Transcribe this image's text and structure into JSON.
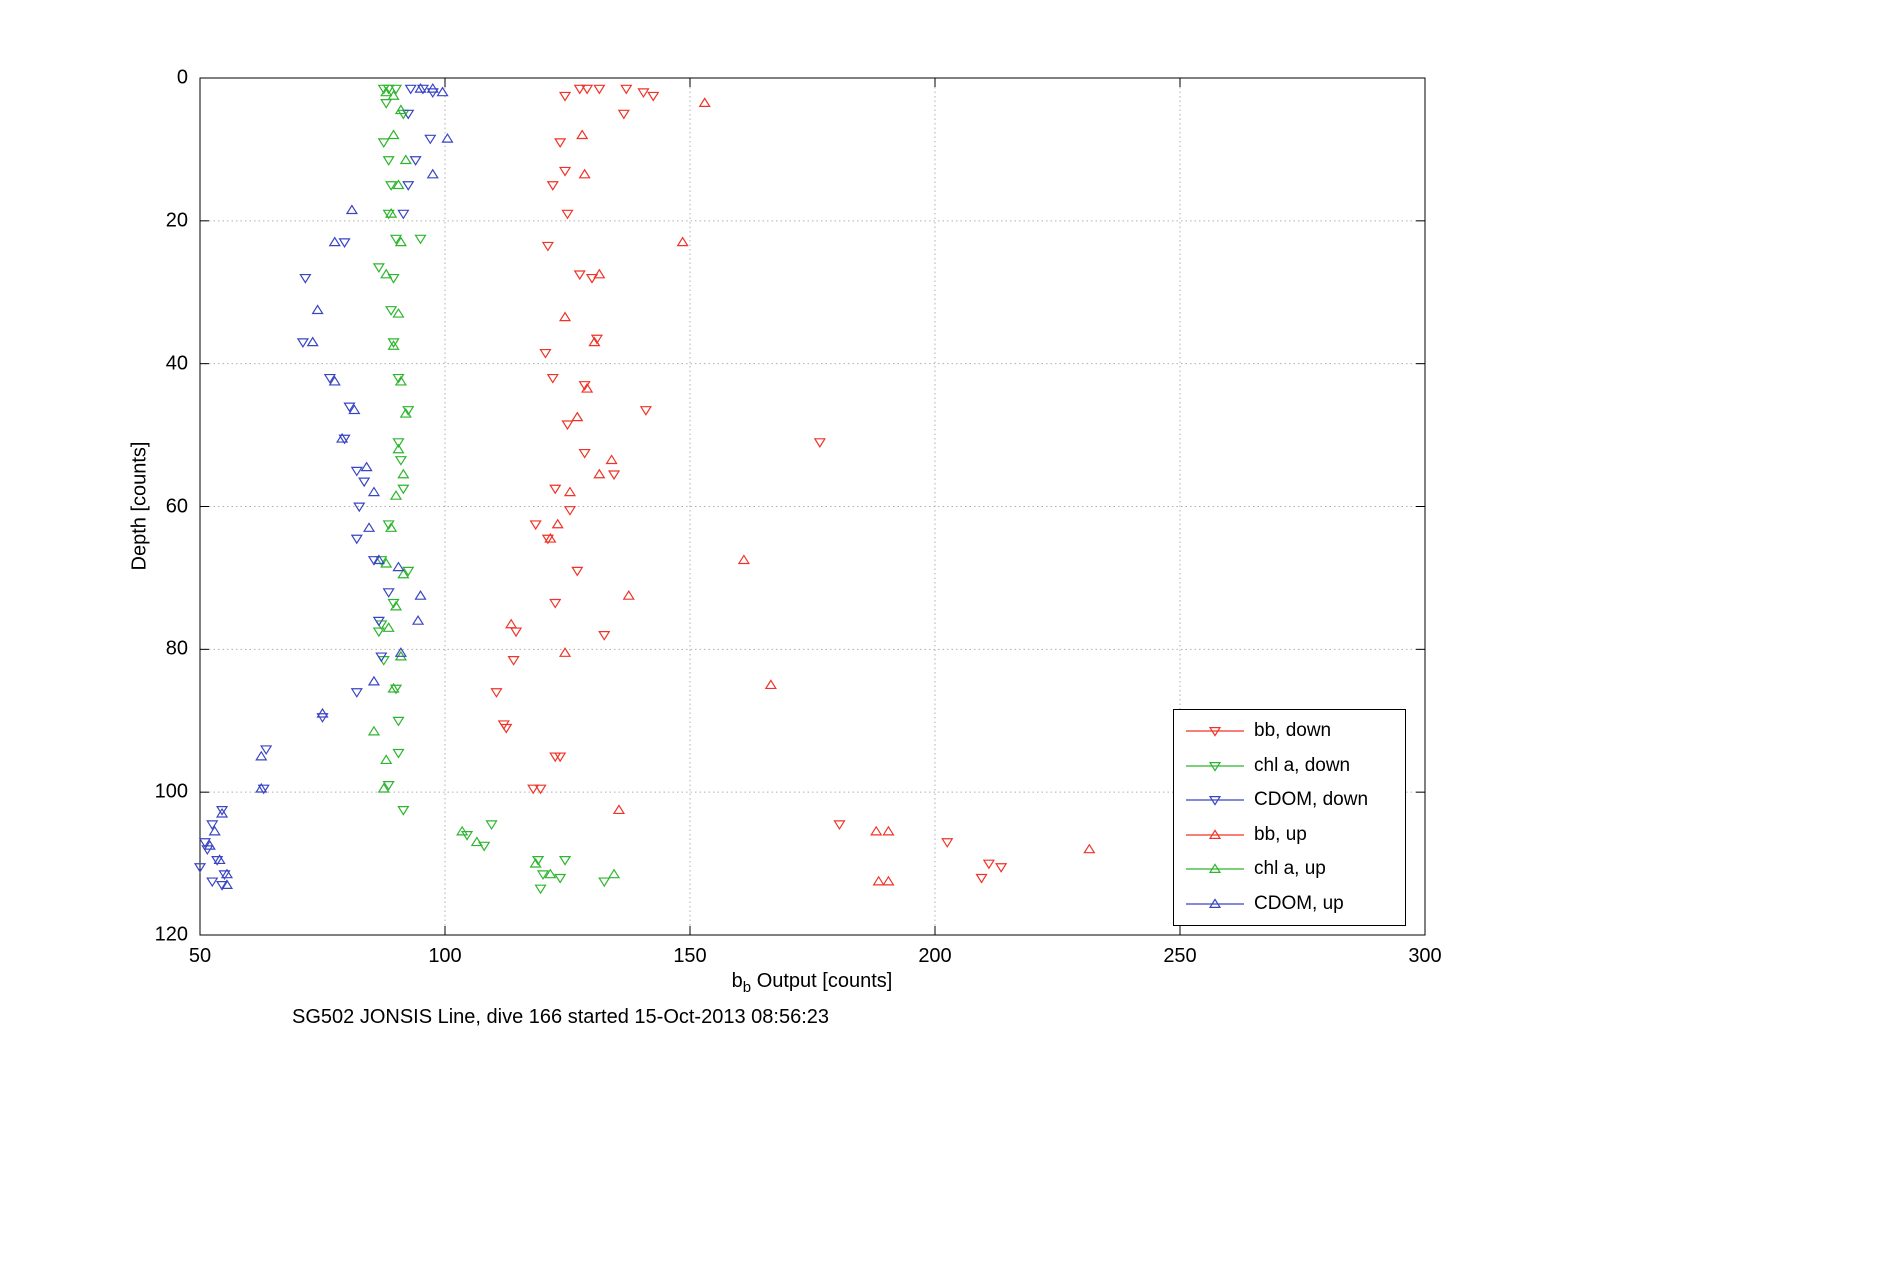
{
  "figure": {
    "caption": "SG502 JONSIS Line, dive 166 started 15-Oct-2013 08:56:23",
    "ylabel": "Depth [counts]",
    "xlabel": {
      "base": "b",
      "sub": "b",
      "rest": " Output [counts]"
    },
    "background_color": "#ffffff"
  },
  "chart_data": {
    "type": "scatter",
    "title": "",
    "xlabel": "b_b Output [counts]",
    "ylabel": "Depth [counts]",
    "xlim": [
      50,
      300
    ],
    "ylim": [
      0,
      120
    ],
    "y_direction": "down",
    "grid": true,
    "x_ticks": [
      50,
      100,
      150,
      200,
      250,
      300
    ],
    "y_ticks": [
      0,
      20,
      40,
      60,
      80,
      100,
      120
    ],
    "legend_position": "inside-lower-right",
    "series": [
      {
        "id": "bb-down",
        "label": "bb, down",
        "color": "#f03328",
        "marker": "triangle-down",
        "points": [
          [
            124.5,
            2.5
          ],
          [
            127.5,
            1.5
          ],
          [
            129,
            1.5
          ],
          [
            131.5,
            1.5
          ],
          [
            137,
            1.5
          ],
          [
            140.5,
            2
          ],
          [
            142.5,
            2.5
          ],
          [
            136.5,
            5
          ],
          [
            123.5,
            9
          ],
          [
            124.5,
            13
          ],
          [
            122,
            15
          ],
          [
            125,
            19
          ],
          [
            121,
            23.5
          ],
          [
            127.5,
            27.5
          ],
          [
            130,
            28
          ],
          [
            131,
            36.5
          ],
          [
            120.5,
            38.5
          ],
          [
            122,
            42
          ],
          [
            128.5,
            43
          ],
          [
            141,
            46.5
          ],
          [
            176.5,
            51
          ],
          [
            125,
            48.5
          ],
          [
            128.5,
            52.5
          ],
          [
            134.5,
            55.5
          ],
          [
            122.5,
            57.5
          ],
          [
            125.5,
            60.5
          ],
          [
            118.5,
            62.5
          ],
          [
            121,
            64.5
          ],
          [
            127,
            69
          ],
          [
            122.5,
            73.5
          ],
          [
            114.5,
            77.5
          ],
          [
            132.5,
            78
          ],
          [
            114,
            81.5
          ],
          [
            110.5,
            86
          ],
          [
            112,
            90.5
          ],
          [
            112.5,
            91
          ],
          [
            122.5,
            95
          ],
          [
            123.5,
            95
          ],
          [
            118,
            99.5
          ],
          [
            119.5,
            99.5
          ],
          [
            180.5,
            104.5
          ],
          [
            202.5,
            107
          ],
          [
            211,
            110
          ],
          [
            213.5,
            110.5
          ],
          [
            209.5,
            112
          ]
        ]
      },
      {
        "id": "chla-down",
        "label": "chl a, down",
        "color": "#2eb52e",
        "marker": "triangle-down",
        "points": [
          [
            87.5,
            1.5
          ],
          [
            88.5,
            1.5
          ],
          [
            90,
            1.5
          ],
          [
            88,
            3.5
          ],
          [
            91.5,
            5
          ],
          [
            87.5,
            9
          ],
          [
            88.5,
            11.5
          ],
          [
            89,
            15
          ],
          [
            88.5,
            19
          ],
          [
            90,
            22.5
          ],
          [
            95,
            22.5
          ],
          [
            86.5,
            26.5
          ],
          [
            89.5,
            28
          ],
          [
            89,
            32.5
          ],
          [
            89.5,
            37
          ],
          [
            90.5,
            42
          ],
          [
            92.5,
            46.5
          ],
          [
            90.5,
            51
          ],
          [
            91,
            53.5
          ],
          [
            91.5,
            57.5
          ],
          [
            88.5,
            62.5
          ],
          [
            87,
            67.5
          ],
          [
            92.5,
            69
          ],
          [
            89.5,
            73.5
          ],
          [
            87,
            76.5
          ],
          [
            86.5,
            77.5
          ],
          [
            87.5,
            81.5
          ],
          [
            90,
            85.5
          ],
          [
            90.5,
            90
          ],
          [
            90.5,
            94.5
          ],
          [
            88.5,
            99
          ],
          [
            91.5,
            102.5
          ],
          [
            104.5,
            106
          ],
          [
            109.5,
            104.5
          ],
          [
            108,
            107.5
          ],
          [
            119,
            109.5
          ],
          [
            124.5,
            109.5
          ],
          [
            120,
            111.5
          ],
          [
            123.5,
            112
          ],
          [
            132.5,
            112.5
          ],
          [
            119.5,
            113.5
          ]
        ]
      },
      {
        "id": "cdom-down",
        "label": "CDOM, down",
        "color": "#3a45c4",
        "marker": "triangle-down",
        "points": [
          [
            93,
            1.5
          ],
          [
            95.5,
            1.5
          ],
          [
            97.5,
            2
          ],
          [
            92.5,
            5
          ],
          [
            97,
            8.5
          ],
          [
            94,
            11.5
          ],
          [
            92.5,
            15
          ],
          [
            91.5,
            19
          ],
          [
            79.5,
            23
          ],
          [
            71.5,
            28
          ],
          [
            71,
            37
          ],
          [
            76.5,
            42
          ],
          [
            80.5,
            46
          ],
          [
            79.5,
            50.5
          ],
          [
            82,
            55
          ],
          [
            83.5,
            56.5
          ],
          [
            82.5,
            60
          ],
          [
            82,
            64.5
          ],
          [
            85.5,
            67.5
          ],
          [
            88.5,
            72
          ],
          [
            86.5,
            76
          ],
          [
            87,
            81
          ],
          [
            82,
            86
          ],
          [
            75,
            89.5
          ],
          [
            63.5,
            94
          ],
          [
            63,
            99.5
          ],
          [
            54.5,
            102.5
          ],
          [
            52.5,
            104.5
          ],
          [
            51,
            107
          ],
          [
            51.5,
            108
          ],
          [
            53.5,
            109.5
          ],
          [
            50,
            110.5
          ],
          [
            55,
            111.5
          ],
          [
            52.5,
            112.5
          ],
          [
            54.5,
            113
          ]
        ]
      },
      {
        "id": "bb-up",
        "label": "bb, up",
        "color": "#f03328",
        "marker": "triangle-up",
        "points": [
          [
            153,
            3.5
          ],
          [
            128,
            8
          ],
          [
            128.5,
            13.5
          ],
          [
            148.5,
            23
          ],
          [
            131.5,
            27.5
          ],
          [
            124.5,
            33.5
          ],
          [
            130.5,
            37
          ],
          [
            129,
            43.5
          ],
          [
            127,
            47.5
          ],
          [
            134,
            53.5
          ],
          [
            131.5,
            55.5
          ],
          [
            125.5,
            58
          ],
          [
            123,
            62.5
          ],
          [
            121.5,
            64.5
          ],
          [
            161,
            67.5
          ],
          [
            137.5,
            72.5
          ],
          [
            113.5,
            76.5
          ],
          [
            124.5,
            80.5
          ],
          [
            166.5,
            85
          ],
          [
            135.5,
            102.5
          ],
          [
            188,
            105.5
          ],
          [
            190.5,
            105.5
          ],
          [
            231.5,
            108
          ],
          [
            188.5,
            112.5
          ],
          [
            190.5,
            112.5
          ]
        ]
      },
      {
        "id": "chla-up",
        "label": "chl a, up",
        "color": "#2eb52e",
        "marker": "triangle-up",
        "points": [
          [
            88,
            2
          ],
          [
            89.5,
            2.5
          ],
          [
            91,
            4.5
          ],
          [
            89.5,
            8
          ],
          [
            92,
            11.5
          ],
          [
            90.5,
            15
          ],
          [
            89,
            19
          ],
          [
            91,
            23
          ],
          [
            88,
            27.5
          ],
          [
            90.5,
            33
          ],
          [
            89.5,
            37.5
          ],
          [
            91,
            42.5
          ],
          [
            92,
            47
          ],
          [
            90.5,
            52
          ],
          [
            91.5,
            55.5
          ],
          [
            90,
            58.5
          ],
          [
            89,
            63
          ],
          [
            88,
            68
          ],
          [
            91.5,
            69.5
          ],
          [
            90,
            74
          ],
          [
            88.5,
            77
          ],
          [
            91,
            81
          ],
          [
            89.5,
            85.5
          ],
          [
            85.5,
            91.5
          ],
          [
            88,
            95.5
          ],
          [
            87.5,
            99.5
          ],
          [
            103.5,
            105.5
          ],
          [
            106.5,
            107
          ],
          [
            118.5,
            110
          ],
          [
            121.5,
            111.5
          ],
          [
            134.5,
            111.5
          ]
        ]
      },
      {
        "id": "cdom-up",
        "label": "CDOM, up",
        "color": "#3a45c4",
        "marker": "triangle-up",
        "points": [
          [
            95,
            1.5
          ],
          [
            97.5,
            1.5
          ],
          [
            99.5,
            2
          ],
          [
            100.5,
            8.5
          ],
          [
            97.5,
            13.5
          ],
          [
            81,
            18.5
          ],
          [
            77.5,
            23
          ],
          [
            74,
            32.5
          ],
          [
            73,
            37
          ],
          [
            77.5,
            42.5
          ],
          [
            81.5,
            46.5
          ],
          [
            79,
            50.5
          ],
          [
            84,
            54.5
          ],
          [
            85.5,
            58
          ],
          [
            84.5,
            63
          ],
          [
            86.5,
            67.5
          ],
          [
            90.5,
            68.5
          ],
          [
            95,
            72.5
          ],
          [
            94.5,
            76
          ],
          [
            91,
            80.5
          ],
          [
            85.5,
            84.5
          ],
          [
            75,
            89
          ],
          [
            62.5,
            95
          ],
          [
            62.5,
            99.5
          ],
          [
            54.5,
            103
          ],
          [
            53,
            105.5
          ],
          [
            52,
            107.5
          ],
          [
            54,
            109.5
          ],
          [
            55.5,
            111.5
          ],
          [
            55.5,
            113
          ]
        ]
      }
    ]
  }
}
